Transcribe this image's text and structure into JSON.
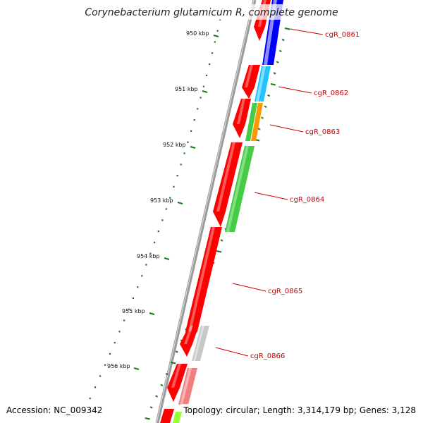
{
  "title": "Corynebacterium glutamicum R, complete genome",
  "accession": "Accession: NC_009342",
  "topology": "Topology: circular; Length: 3,314,179 bp; Genes: 3,128",
  "ruler": {
    "unit": "kbp",
    "labels": [
      "950 kbp",
      "951 kbp",
      "952 kbp",
      "953 kbp",
      "954 kbp",
      "955 kbp",
      "956 kbp"
    ]
  },
  "genes": [
    "cgR_0861",
    "cgR_0862",
    "cgR_0863",
    "cgR_0864",
    "cgR_0865",
    "cgR_0866"
  ],
  "colors": {
    "backbone": "#8a8a8a",
    "cds": "#ff0000",
    "ticks": "#1a7a1a",
    "label": "#cc0000",
    "blue": "#0000ff",
    "cyan": "#22c4ff",
    "green": "#44cc44",
    "orange": "#ff9900",
    "gray": "#c8c8c8",
    "pink": "#f08080",
    "lime": "#99ff33"
  }
}
